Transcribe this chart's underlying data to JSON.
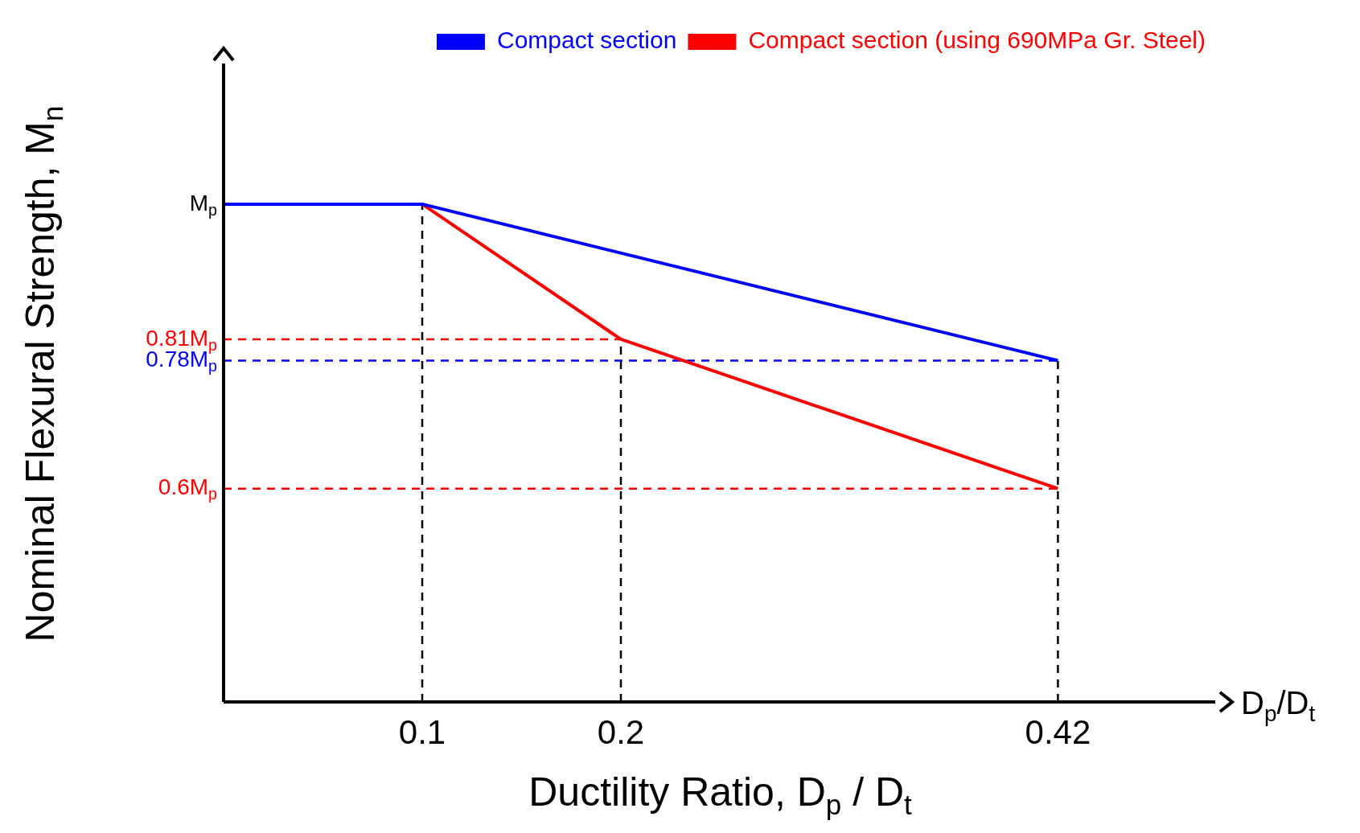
{
  "chart_data": {
    "type": "line",
    "xlabel": "Ductility Ratio, D$_{p}$ / D$_{t}$",
    "ylabel": "Nominal Flexural Strength, M$_{n}$",
    "annotations": [
      "D$_{p}$/D$_{t}$"
    ],
    "series": [
      {
        "name": "Compact section",
        "color": "#0000ff",
        "x": [
          0,
          0.1,
          0.42
        ],
        "values": [
          1,
          1,
          0.78
        ]
      },
      {
        "name": "Compact section (using 690MPa Gr. Steel)",
        "color": "#ff0000",
        "x": [
          0.1,
          0.2,
          0.42
        ],
        "values": [
          1,
          0.81,
          0.6
        ]
      }
    ],
    "xlim": [
      0,
      0.5
    ],
    "xticks": [
      0.1,
      0.2,
      0.42
    ],
    "ylim": [
      0.3,
      1.2
    ],
    "yticks": [
      {
        "value": 1,
        "label": "M$_{p}$"
      },
      {
        "value": 0.81,
        "label": "0.81M$_{p}$"
      },
      {
        "value": 0.78,
        "label": "0.78M$_{p}$"
      },
      {
        "value": 0.6,
        "label": "0.6M$_{p}$"
      }
    ],
    "ref_lines": [
      {
        "axis": "y",
        "value": 0.81,
        "color": "#ff0000",
        "line_style": "dashed"
      },
      {
        "axis": "y",
        "value": 0.78,
        "color": "#0000ff",
        "line_style": "dashed"
      },
      {
        "axis": "y",
        "value": 0.6,
        "color": "#ff0000",
        "line_style": "dashed"
      },
      {
        "axis": "x",
        "value": 0.1,
        "color": "#000000",
        "line_style": "dashed"
      },
      {
        "axis": "x",
        "value": 0.2,
        "color": "#000000",
        "line_style": "dashed"
      },
      {
        "axis": "x",
        "value": 0.42,
        "color": "#000000",
        "line_style": "dashed"
      }
    ],
    "grid": false,
    "legend": "top right",
    "marker": "none",
    "line_style": "solid"
  }
}
